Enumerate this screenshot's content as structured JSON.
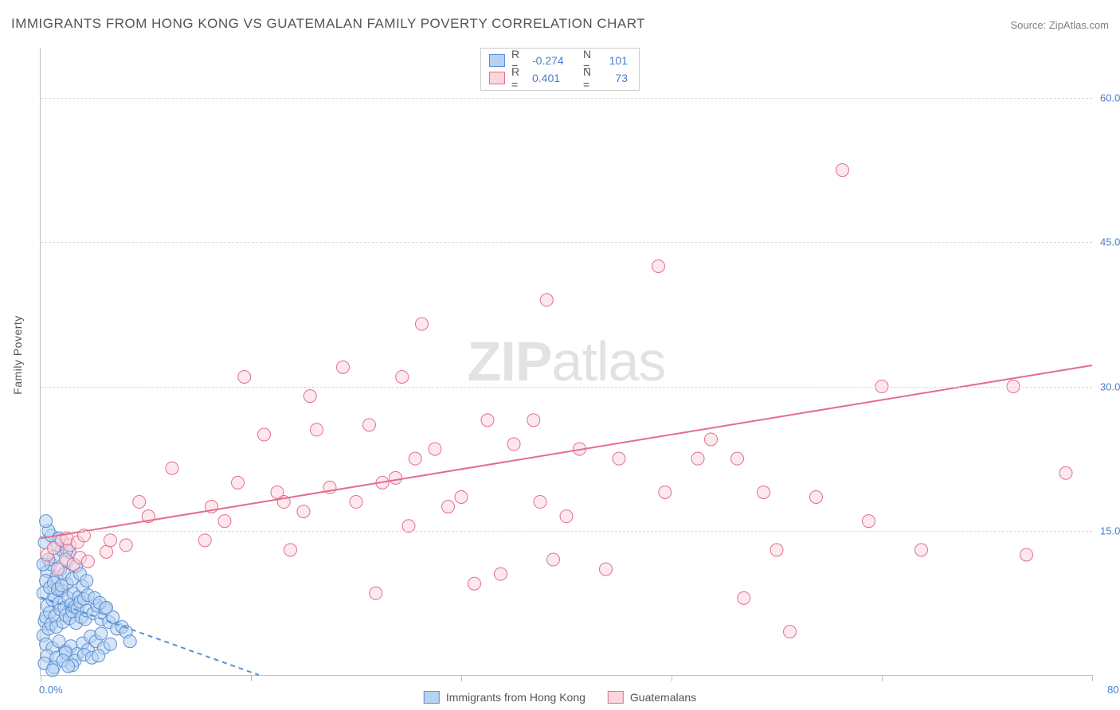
{
  "title": "IMMIGRANTS FROM HONG KONG VS GUATEMALAN FAMILY POVERTY CORRELATION CHART",
  "source": "Source: ZipAtlas.com",
  "ylabel": "Family Poverty",
  "watermark_bold": "ZIP",
  "watermark_rest": "atlas",
  "chart": {
    "type": "scatter",
    "xlim": [
      0,
      80
    ],
    "ylim": [
      0,
      65.22
    ],
    "xtick_positions": [
      0,
      16,
      32,
      48,
      64,
      80
    ],
    "xtick_labels": [
      "0.0%",
      "",
      "",
      "",
      "",
      "80.0%"
    ],
    "ytick_positions": [
      15,
      30,
      45,
      60
    ],
    "ytick_labels": [
      "15.0%",
      "30.0%",
      "45.0%",
      "60.0%"
    ],
    "grid_color": "#d8d8d8",
    "axis_color": "#c0c0c0",
    "background_color": "#ffffff",
    "tick_label_color": "#4a7ec9",
    "tick_label_fontsize": 13,
    "marker_radius": 8,
    "marker_opacity": 0.55,
    "trend_line_width": 2
  },
  "series": [
    {
      "name": "Immigrants from Hong Kong",
      "fill_color": "#b7d2f0",
      "stroke_color": "#5a8fd6",
      "r": "-0.274",
      "n": "101",
      "trend": {
        "x1": 0,
        "y1": 8.1,
        "x2": 16.6,
        "y2": 0,
        "dash": "6 5"
      },
      "points": [
        [
          0.2,
          4.1
        ],
        [
          0.3,
          5.6
        ],
        [
          0.4,
          6.0
        ],
        [
          0.5,
          7.2
        ],
        [
          0.6,
          4.8
        ],
        [
          0.7,
          6.5
        ],
        [
          0.8,
          5.3
        ],
        [
          0.9,
          7.8
        ],
        [
          1.0,
          8.2
        ],
        [
          1.1,
          6.1
        ],
        [
          1.2,
          5.0
        ],
        [
          1.3,
          9.0
        ],
        [
          1.4,
          7.5
        ],
        [
          1.5,
          6.8
        ],
        [
          1.6,
          8.8
        ],
        [
          1.7,
          5.5
        ],
        [
          1.8,
          7.0
        ],
        [
          1.9,
          6.2
        ],
        [
          2.0,
          9.5
        ],
        [
          2.1,
          8.0
        ],
        [
          2.2,
          5.9
        ],
        [
          2.3,
          7.3
        ],
        [
          2.4,
          6.6
        ],
        [
          2.5,
          8.5
        ],
        [
          2.6,
          7.1
        ],
        [
          2.7,
          5.4
        ],
        [
          2.8,
          6.9
        ],
        [
          2.9,
          8.1
        ],
        [
          3.0,
          7.6
        ],
        [
          3.1,
          6.0
        ],
        [
          3.2,
          9.2
        ],
        [
          3.3,
          7.9
        ],
        [
          3.4,
          5.8
        ],
        [
          3.5,
          6.7
        ],
        [
          3.6,
          8.3
        ],
        [
          0.5,
          10.8
        ],
        [
          0.8,
          11.5
        ],
        [
          1.2,
          10.2
        ],
        [
          1.5,
          11.0
        ],
        [
          1.8,
          10.5
        ],
        [
          2.0,
          11.8
        ],
        [
          2.4,
          10.0
        ],
        [
          2.7,
          11.3
        ],
        [
          0.4,
          3.2
        ],
        [
          0.9,
          2.8
        ],
        [
          1.4,
          3.5
        ],
        [
          1.9,
          2.5
        ],
        [
          2.3,
          3.0
        ],
        [
          2.8,
          2.2
        ],
        [
          3.2,
          3.3
        ],
        [
          3.6,
          2.6
        ],
        [
          0.3,
          13.8
        ],
        [
          1.0,
          12.3
        ],
        [
          1.6,
          13.0
        ],
        [
          2.2,
          12.8
        ],
        [
          0.6,
          12.0
        ],
        [
          1.3,
          13.5
        ],
        [
          4.0,
          6.4
        ],
        [
          4.3,
          7.2
        ],
        [
          4.6,
          5.8
        ],
        [
          4.9,
          6.9
        ],
        [
          4.1,
          8.0
        ],
        [
          4.5,
          7.5
        ],
        [
          0.2,
          8.5
        ],
        [
          0.4,
          9.8
        ],
        [
          0.7,
          9.1
        ],
        [
          1.0,
          9.6
        ],
        [
          1.3,
          8.9
        ],
        [
          1.6,
          9.3
        ],
        [
          5.2,
          5.5
        ],
        [
          5.5,
          6.0
        ],
        [
          5.8,
          4.8
        ],
        [
          5.0,
          7.0
        ],
        [
          0.5,
          2.0
        ],
        [
          1.2,
          1.8
        ],
        [
          1.9,
          2.3
        ],
        [
          2.6,
          1.5
        ],
        [
          3.3,
          2.1
        ],
        [
          3.8,
          4.0
        ],
        [
          4.2,
          3.5
        ],
        [
          4.6,
          4.3
        ],
        [
          0.8,
          14.5
        ],
        [
          2.0,
          13.0
        ],
        [
          6.2,
          5.0
        ],
        [
          6.5,
          4.5
        ],
        [
          0.3,
          1.2
        ],
        [
          1.0,
          0.8
        ],
        [
          1.7,
          1.5
        ],
        [
          2.4,
          1.0
        ],
        [
          3.0,
          10.5
        ],
        [
          3.5,
          9.8
        ],
        [
          0.6,
          15.0
        ],
        [
          1.4,
          14.2
        ],
        [
          4.8,
          2.8
        ],
        [
          5.3,
          3.2
        ],
        [
          0.9,
          0.5
        ],
        [
          2.1,
          0.9
        ],
        [
          3.9,
          1.8
        ],
        [
          4.4,
          2.0
        ],
        [
          0.4,
          16.0
        ],
        [
          6.8,
          3.5
        ],
        [
          0.2,
          11.5
        ]
      ]
    },
    {
      "name": "Guatemalans",
      "fill_color": "#fbd5de",
      "stroke_color": "#e36d8c",
      "r": "0.401",
      "n": "73",
      "trend": {
        "x1": 0,
        "y1": 14.2,
        "x2": 80,
        "y2": 32.2,
        "dash": null
      },
      "points": [
        [
          0.5,
          12.5
        ],
        [
          1.0,
          13.2
        ],
        [
          1.3,
          11.0
        ],
        [
          1.6,
          14.0
        ],
        [
          1.9,
          12.0
        ],
        [
          2.2,
          13.5
        ],
        [
          2.5,
          11.5
        ],
        [
          2.0,
          14.2
        ],
        [
          2.8,
          13.8
        ],
        [
          3.0,
          12.2
        ],
        [
          3.3,
          14.5
        ],
        [
          3.6,
          11.8
        ],
        [
          5.0,
          12.8
        ],
        [
          5.3,
          14.0
        ],
        [
          6.5,
          13.5
        ],
        [
          7.5,
          18.0
        ],
        [
          8.2,
          16.5
        ],
        [
          10.0,
          21.5
        ],
        [
          12.5,
          14.0
        ],
        [
          13.0,
          17.5
        ],
        [
          14.0,
          16.0
        ],
        [
          15.0,
          20.0
        ],
        [
          17.0,
          25.0
        ],
        [
          15.5,
          31.0
        ],
        [
          18.5,
          18.0
        ],
        [
          19.0,
          13.0
        ],
        [
          18.0,
          19.0
        ],
        [
          20.0,
          17.0
        ],
        [
          20.5,
          29.0
        ],
        [
          21.0,
          25.5
        ],
        [
          22.0,
          19.5
        ],
        [
          23.0,
          32.0
        ],
        [
          24.0,
          18.0
        ],
        [
          25.0,
          26.0
        ],
        [
          25.5,
          8.5
        ],
        [
          26.0,
          20.0
        ],
        [
          27.0,
          20.5
        ],
        [
          28.0,
          15.5
        ],
        [
          27.5,
          31.0
        ],
        [
          28.5,
          22.5
        ],
        [
          29.0,
          36.5
        ],
        [
          30.0,
          23.5
        ],
        [
          31.0,
          17.5
        ],
        [
          32.0,
          18.5
        ],
        [
          33.0,
          9.5
        ],
        [
          34.0,
          26.5
        ],
        [
          35.0,
          10.5
        ],
        [
          36.0,
          24.0
        ],
        [
          37.5,
          26.5
        ],
        [
          38.0,
          18.0
        ],
        [
          38.5,
          39.0
        ],
        [
          39.0,
          12.0
        ],
        [
          40.0,
          16.5
        ],
        [
          41.0,
          23.5
        ],
        [
          43.0,
          11.0
        ],
        [
          44.0,
          22.5
        ],
        [
          47.0,
          42.5
        ],
        [
          47.5,
          19.0
        ],
        [
          50.0,
          22.5
        ],
        [
          51.0,
          24.5
        ],
        [
          53.5,
          8.0
        ],
        [
          53.0,
          22.5
        ],
        [
          55.0,
          19.0
        ],
        [
          56.0,
          13.0
        ],
        [
          57.0,
          4.5
        ],
        [
          59.0,
          18.5
        ],
        [
          61.0,
          52.5
        ],
        [
          63.0,
          16.0
        ],
        [
          64.0,
          30.0
        ],
        [
          67.0,
          13.0
        ],
        [
          74.0,
          30.0
        ],
        [
          75.0,
          12.5
        ],
        [
          78.0,
          21.0
        ]
      ]
    }
  ],
  "legend_bottom": [
    {
      "label": "Immigrants from Hong Kong",
      "fill": "#b7d2f0",
      "stroke": "#5a8fd6"
    },
    {
      "label": "Guatemalans",
      "fill": "#fbd5de",
      "stroke": "#e36d8c"
    }
  ]
}
